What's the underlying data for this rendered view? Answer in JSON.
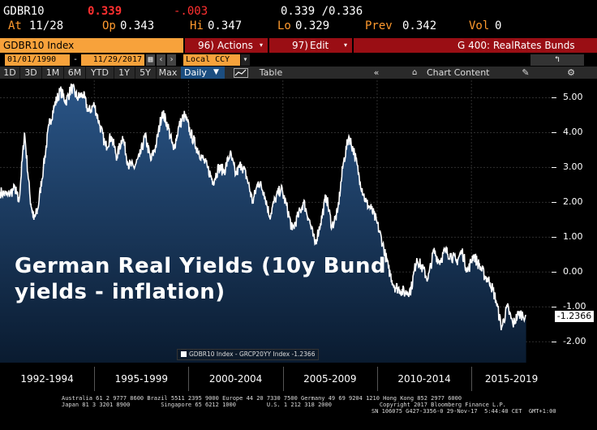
{
  "quote": {
    "ticker": "GDBR10",
    "last": "0.339",
    "change": "-.003",
    "bid_ask": "0.339 /0.336",
    "at_label": "At",
    "at_date": "11/28",
    "op_label": "Op",
    "op_value": "0.343",
    "hi_label": "Hi",
    "hi_value": "0.347",
    "lo_label": "Lo",
    "lo_value": "0.329",
    "prev_label": "Prev",
    "prev_value": "0.342",
    "vol_label": "Vol",
    "vol_value": "0"
  },
  "toolbar": {
    "security": "GDBR10 Index",
    "actions_num": "96)",
    "actions_label": "Actions",
    "edit_num": "97)",
    "edit_label": "Edit",
    "graph_label": "G 400: RealRates Bunds"
  },
  "range": {
    "start_date": "01/01/1990",
    "dash": "-",
    "end_date": "11/29/2017",
    "currency": "Local CCY"
  },
  "tabs": {
    "periods": [
      "1D",
      "3D",
      "1M",
      "6M",
      "YTD",
      "1Y",
      "5Y",
      "Max"
    ],
    "frequency": "Daily",
    "table": "Table",
    "chart_content": "Chart Content"
  },
  "annotation": {
    "line1": "German Real Yields (10y Bund",
    "line2": "yields - inflation)"
  },
  "legend": {
    "text": "GDBR10 Index - GRCP20YY Index -1.2366"
  },
  "last_value_label": "-1.2366",
  "chart_data": {
    "type": "area",
    "title": "",
    "xlabel": "",
    "ylabel": "",
    "x_ticks": [
      "1992-1994",
      "1995-1999",
      "2000-2004",
      "2005-2009",
      "2010-2014",
      "2015-2019"
    ],
    "y_ticks": [
      "5.00",
      "4.00",
      "3.00",
      "2.00",
      "1.00",
      "0.00",
      "-1.00",
      "-2.00"
    ],
    "ylim": [
      -2.6,
      5.5
    ],
    "xlim": [
      1990.0,
      2019.25
    ],
    "grid": true,
    "legend_position": "bottom-left",
    "series": [
      {
        "name": "GDBR10 Index - GRCP20YY Index",
        "color": "#ffffff",
        "fill": "#1e3f66",
        "x": [
          1990.0,
          1990.4,
          1990.8,
          1991.0,
          1991.3,
          1991.6,
          1991.8,
          1992.0,
          1992.3,
          1992.6,
          1992.9,
          1993.2,
          1993.5,
          1993.8,
          1994.1,
          1994.4,
          1994.7,
          1995.0,
          1995.3,
          1995.6,
          1995.9,
          1996.2,
          1996.5,
          1996.8,
          1997.1,
          1997.4,
          1997.7,
          1998.0,
          1998.3,
          1998.6,
          1998.9,
          1999.2,
          1999.5,
          1999.8,
          2000.1,
          2000.4,
          2000.7,
          2001.0,
          2001.3,
          2001.6,
          2001.9,
          2002.2,
          2002.5,
          2002.8,
          2003.1,
          2003.4,
          2003.7,
          2004.0,
          2004.3,
          2004.6,
          2004.9,
          2005.2,
          2005.5,
          2005.8,
          2006.1,
          2006.4,
          2006.7,
          2007.0,
          2007.3,
          2007.6,
          2007.9,
          2008.2,
          2008.5,
          2008.8,
          2009.1,
          2009.4,
          2009.7,
          2010.0,
          2010.3,
          2010.6,
          2010.9,
          2011.2,
          2011.5,
          2011.8,
          2012.1,
          2012.4,
          2012.7,
          2013.0,
          2013.3,
          2013.6,
          2013.9,
          2014.2,
          2014.5,
          2014.8,
          2015.1,
          2015.4,
          2015.7,
          2016.0,
          2016.3,
          2016.6,
          2016.9,
          2017.2,
          2017.5,
          2017.9
        ],
        "values": [
          2.3,
          2.2,
          2.4,
          2.0,
          4.0,
          2.1,
          1.5,
          1.8,
          3.0,
          4.2,
          4.8,
          5.2,
          4.9,
          5.3,
          5.0,
          5.1,
          4.6,
          4.8,
          4.2,
          3.6,
          3.9,
          3.3,
          3.9,
          3.1,
          3.0,
          3.3,
          3.9,
          3.2,
          3.7,
          4.6,
          4.2,
          3.5,
          4.2,
          4.5,
          4.0,
          3.6,
          3.3,
          3.0,
          2.6,
          3.0,
          2.9,
          3.4,
          2.8,
          3.1,
          2.7,
          2.0,
          2.6,
          2.3,
          1.6,
          2.1,
          2.4,
          1.9,
          1.2,
          1.6,
          2.0,
          1.5,
          0.8,
          1.4,
          2.2,
          1.3,
          1.7,
          3.1,
          3.9,
          3.4,
          2.6,
          2.0,
          1.8,
          1.4,
          0.8,
          0.1,
          -0.4,
          -0.5,
          -0.6,
          -0.5,
          0.4,
          0.1,
          -0.2,
          0.6,
          0.3,
          0.6,
          0.5,
          0.3,
          0.6,
          0.0,
          0.5,
          0.2,
          -0.1,
          -0.3,
          -0.8,
          -1.6,
          -1.0,
          -1.5,
          -1.2,
          -1.2366
        ]
      }
    ]
  },
  "footer": {
    "line1": "Australia 61 2 9777 8600 Brazil 5511 2395 9000 Europe 44 20 7330 7500 Germany 49 69 9204 1210 Hong Kong 852 2977 6000",
    "line2": "Japan 81 3 3201 8900         Singapore 65 6212 1000         U.S. 1 212 318 2000              Copyright 2017 Bloomberg Finance L.P.",
    "line3": "SN 106075 G427-3356-0 29-Nov-17  5:44:40 CET  GMT+1:00"
  },
  "colors": {
    "bloomberg_orange": "#f7a23b",
    "bloomberg_red": "#9a0e14",
    "area_fill": "#1e3f66",
    "line": "#ffffff"
  }
}
